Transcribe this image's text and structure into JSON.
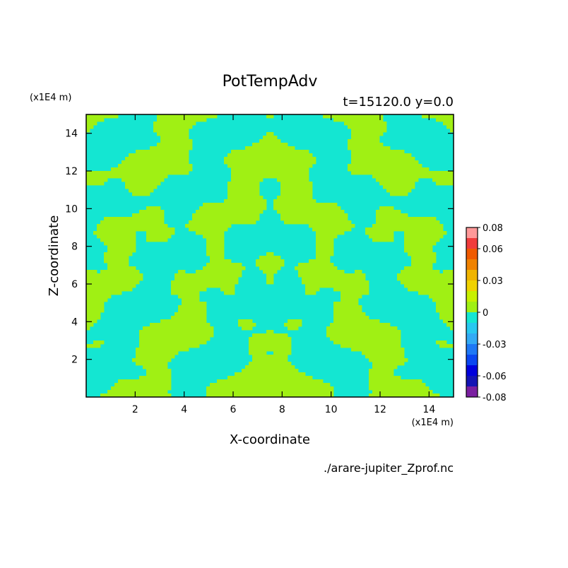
{
  "chart_data": {
    "type": "heatmap",
    "title": "PotTempAdv",
    "subtitle": "t=15120.0 y=0.0",
    "xlabel": "X-coordinate",
    "ylabel": "Z-coordinate",
    "x_unit": "(x1E4 m)",
    "y_unit": "(x1E4 m)",
    "file_label": "./arare-jupiter_Zprof.nc",
    "xlim": [
      0,
      15
    ],
    "ylim": [
      0,
      15
    ],
    "x_ticks": [
      2,
      4,
      6,
      8,
      10,
      12,
      14
    ],
    "y_ticks": [
      2,
      4,
      6,
      8,
      10,
      12,
      14
    ],
    "colorbar": {
      "levels": [
        -0.08,
        -0.07,
        -0.06,
        -0.05,
        -0.04,
        -0.03,
        -0.02,
        -0.01,
        0,
        0.01,
        0.02,
        0.03,
        0.04,
        0.05,
        0.06,
        0.07,
        0.08
      ],
      "colors": [
        "#7a1fa0",
        "#1414b4",
        "#0000dc",
        "#0a46f0",
        "#1e78f5",
        "#32aaf5",
        "#28c8f0",
        "#14e6d2",
        "#a0f014",
        "#c8f000",
        "#f0d200",
        "#f0b400",
        "#f08200",
        "#f05a00",
        "#f03c3c",
        "#ff9999"
      ],
      "tick_labels": [
        "0.08",
        "0.06",
        "0.03",
        "0",
        "-0.03",
        "-0.06",
        "-0.08"
      ],
      "tick_values": [
        0.08,
        0.06,
        0.03,
        0,
        -0.03,
        -0.06,
        -0.08
      ]
    },
    "field_colors": {
      "positive": "#a0f014",
      "negative": "#14e6d2"
    }
  }
}
